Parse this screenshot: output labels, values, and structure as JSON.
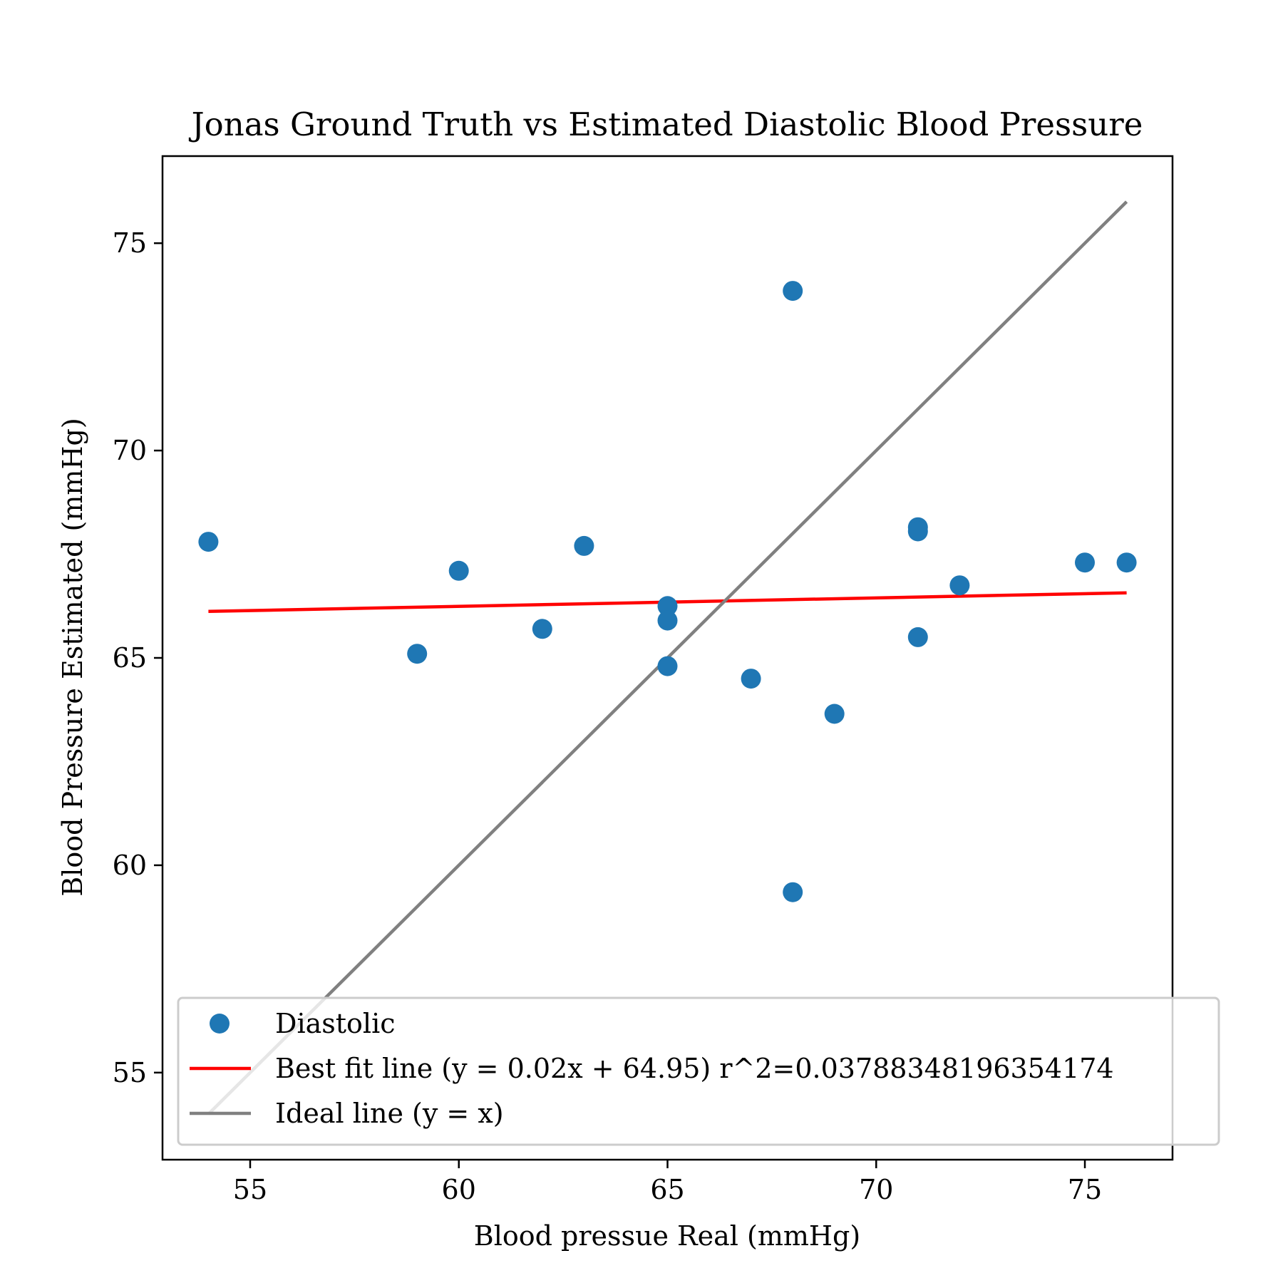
{
  "chart_data": {
    "type": "scatter",
    "title": "Jonas Ground Truth vs Estimated Diastolic Blood Pressure",
    "xlabel": "Blood pressue Real (mmHg)",
    "ylabel": "Blood Pressure Estimated (mmHg)",
    "xlim": [
      52.9,
      77.1
    ],
    "ylim": [
      52.9,
      77.1
    ],
    "xticks": [
      55,
      60,
      65,
      70,
      75
    ],
    "yticks": [
      55,
      60,
      65,
      70,
      75
    ],
    "grid": false,
    "legend_position": "lower-right",
    "series": [
      {
        "name": "Diastolic",
        "kind": "scatter",
        "color": "#1f77b4",
        "points": [
          {
            "x": 54,
            "y": 67.8
          },
          {
            "x": 59,
            "y": 65.1
          },
          {
            "x": 60,
            "y": 67.1
          },
          {
            "x": 62,
            "y": 65.7
          },
          {
            "x": 63,
            "y": 67.7
          },
          {
            "x": 65,
            "y": 66.25
          },
          {
            "x": 65,
            "y": 65.9
          },
          {
            "x": 65,
            "y": 64.8
          },
          {
            "x": 67,
            "y": 64.5
          },
          {
            "x": 68,
            "y": 73.85
          },
          {
            "x": 68,
            "y": 59.35
          },
          {
            "x": 69,
            "y": 63.65
          },
          {
            "x": 71,
            "y": 68.15
          },
          {
            "x": 71,
            "y": 68.05
          },
          {
            "x": 71,
            "y": 65.5
          },
          {
            "x": 72,
            "y": 66.75
          },
          {
            "x": 75,
            "y": 67.3
          },
          {
            "x": 76,
            "y": 67.3
          }
        ]
      },
      {
        "name": "Best fit line (y = 0.02x + 64.95) r^2=0.0378834819635417​4",
        "kind": "line",
        "color": "#ff0000",
        "points": [
          {
            "x": 54,
            "y": 66.12
          },
          {
            "x": 76,
            "y": 66.57
          }
        ]
      },
      {
        "name": "Ideal line (y = x)",
        "kind": "line",
        "color": "#808080",
        "points": [
          {
            "x": 54,
            "y": 54
          },
          {
            "x": 76,
            "y": 76
          }
        ]
      }
    ]
  }
}
